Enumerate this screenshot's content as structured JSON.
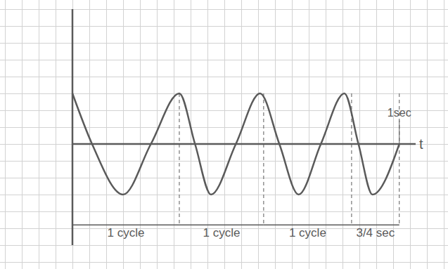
{
  "chart_data": {
    "type": "line",
    "x_label": "t",
    "x": [
      0,
      0.06,
      0.155,
      0.24,
      0.327,
      0.375,
      0.424,
      0.5,
      0.574,
      0.633,
      0.692,
      0.76,
      0.832,
      0.875,
      0.918,
      1.0
    ],
    "values": [
      3,
      0,
      -3,
      0,
      3,
      0,
      -3,
      0,
      3,
      0,
      -3,
      0,
      3,
      0,
      -3,
      0
    ],
    "color": "#5a5a5a",
    "xlim": [
      0,
      1.05
    ],
    "ylim": [
      -6,
      8
    ],
    "tick_labels": false,
    "grid": true,
    "annotations": [
      {
        "text": "1 cycle",
        "from": 0,
        "to": 0.327
      },
      {
        "text": "1 cycle",
        "from": 0.327,
        "to": 0.585
      },
      {
        "text": "1 cycle",
        "from": 0.585,
        "to": 0.854
      },
      {
        "text": "3/4 sec",
        "from": 0.854,
        "to": 1.0
      }
    ],
    "marker_label": {
      "text": "1sec",
      "x": 1.0
    }
  }
}
